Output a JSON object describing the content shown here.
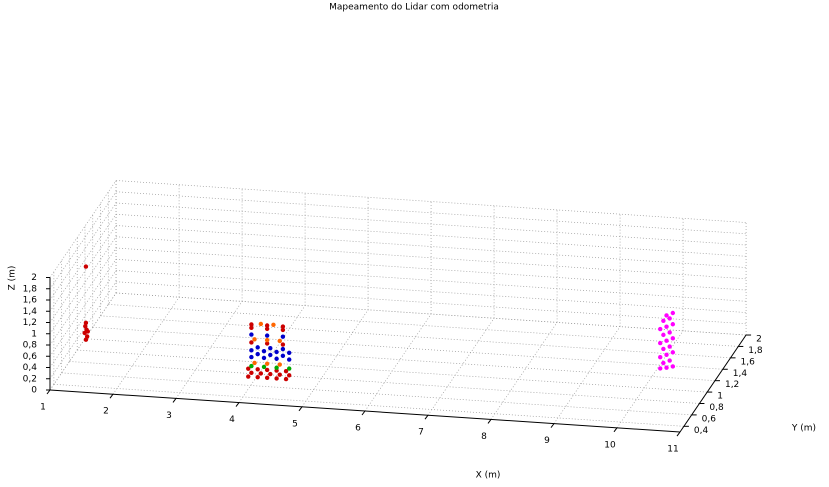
{
  "chart_data": {
    "type": "scatter3d",
    "title": "Mapeamento do Lidar com odometria",
    "xlabel": "X (m)",
    "ylabel": "Y (m)",
    "zlabel": "Z (m)",
    "xlim": [
      1,
      11
    ],
    "xticks": [
      1,
      2,
      3,
      4,
      5,
      6,
      7,
      8,
      9,
      10,
      11
    ],
    "ylim": [
      0.3,
      2
    ],
    "yticks": [
      {
        "value": 0.4,
        "label": "0,4"
      },
      {
        "value": 0.6,
        "label": "0,6"
      },
      {
        "value": 0.8,
        "label": "0,8"
      },
      1,
      {
        "value": 1.2,
        "label": "1,2"
      },
      {
        "value": 1.4,
        "label": "1,4"
      },
      {
        "value": 1.6,
        "label": "1,6"
      },
      {
        "value": 1.8,
        "label": "1,8"
      },
      2
    ],
    "zlim": [
      0,
      2
    ],
    "zticks": [
      0,
      {
        "value": 0.2,
        "label": "0,2"
      },
      {
        "value": 0.4,
        "label": "0,4"
      },
      {
        "value": 0.6,
        "label": "0,6"
      },
      {
        "value": 0.8,
        "label": "0,8"
      },
      1,
      {
        "value": 1.2,
        "label": "1,2"
      },
      {
        "value": 1.4,
        "label": "1,4"
      },
      {
        "value": 1.6,
        "label": "1,6"
      },
      {
        "value": 1.8,
        "label": "1,8"
      },
      2
    ],
    "grid": true,
    "series": [
      {
        "color": "#cc0000",
        "x": [
          3.9,
          4.05,
          4.2,
          4.35,
          4.5,
          3.95,
          4.1,
          4.25,
          4.4,
          4.55,
          3.9,
          4.05,
          4.2,
          4.35,
          4.5,
          3.95,
          4.2,
          4.45,
          3.95,
          4.2,
          4.45,
          3.95,
          4.2,
          4.45,
          1.2,
          1.22,
          1.18,
          1.21,
          1.19,
          1.2,
          1.23,
          1.2
        ],
        "y": [
          0.7,
          0.7,
          0.7,
          0.7,
          0.7,
          0.7,
          0.7,
          0.7,
          0.7,
          0.7,
          0.7,
          0.7,
          0.7,
          0.7,
          0.7,
          0.7,
          0.7,
          0.7,
          0.7,
          0.7,
          0.7,
          0.7,
          0.7,
          0.7,
          0.9,
          0.9,
          0.9,
          0.9,
          0.9,
          0.9,
          0.9,
          0.9
        ],
        "z": [
          0.05,
          0.05,
          0.05,
          0.05,
          0.05,
          0.12,
          0.12,
          0.12,
          0.12,
          0.12,
          0.19,
          0.19,
          0.19,
          0.19,
          0.19,
          0.66,
          0.66,
          0.66,
          0.92,
          0.92,
          0.92,
          0.98,
          0.98,
          0.98,
          0.3,
          0.36,
          0.42,
          0.48,
          0.54,
          0.6,
          0.45,
          1.6
        ]
      },
      {
        "color": "#0000cc",
        "x": [
          3.95,
          4.15,
          4.35,
          4.55,
          4.05,
          4.25,
          4.45,
          3.95,
          4.15,
          4.35,
          4.55,
          4.05,
          4.25,
          4.45,
          3.95,
          4.2,
          4.45
        ],
        "y": [
          0.7,
          0.7,
          0.7,
          0.7,
          0.7,
          0.7,
          0.7,
          0.7,
          0.7,
          0.7,
          0.7,
          0.7,
          0.7,
          0.7,
          0.7,
          0.7,
          0.7
        ],
        "z": [
          0.4,
          0.4,
          0.4,
          0.4,
          0.46,
          0.46,
          0.46,
          0.52,
          0.52,
          0.52,
          0.52,
          0.58,
          0.58,
          0.58,
          0.8,
          0.8,
          0.8
        ]
      },
      {
        "color": "#ff6600",
        "x": [
          4.0,
          4.2,
          4.4,
          4.0,
          4.2,
          4.4,
          4.1,
          4.3
        ],
        "y": [
          0.7,
          0.7,
          0.7,
          0.7,
          0.7,
          0.7,
          0.7,
          0.7
        ],
        "z": [
          0.3,
          0.3,
          0.3,
          0.72,
          0.72,
          0.72,
          1.0,
          1.0
        ]
      },
      {
        "color": "#00aa00",
        "x": [
          3.95,
          4.15,
          4.35,
          4.55
        ],
        "y": [
          0.7,
          0.7,
          0.7,
          0.7
        ],
        "z": [
          0.24,
          0.24,
          0.24,
          0.24
        ]
      },
      {
        "color": "#ff00ff",
        "x": [
          10.1,
          10.2,
          10.3,
          10.15,
          10.25,
          10.1,
          10.2,
          10.3,
          10.15,
          10.25,
          10.1,
          10.2,
          10.3,
          10.15,
          10.25,
          10.1,
          10.2,
          10.3,
          10.15,
          10.25,
          10.2,
          10.3
        ],
        "y": [
          1.25,
          1.25,
          1.25,
          1.25,
          1.25,
          1.25,
          1.25,
          1.25,
          1.25,
          1.25,
          1.25,
          1.25,
          1.25,
          1.25,
          1.25,
          1.25,
          1.25,
          1.25,
          1.25,
          1.25,
          1.25,
          1.25
        ],
        "z": [
          0.1,
          0.12,
          0.15,
          0.2,
          0.25,
          0.3,
          0.35,
          0.4,
          0.45,
          0.5,
          0.55,
          0.6,
          0.65,
          0.7,
          0.75,
          0.8,
          0.85,
          0.9,
          0.95,
          1.0,
          1.05,
          1.1
        ]
      }
    ]
  }
}
